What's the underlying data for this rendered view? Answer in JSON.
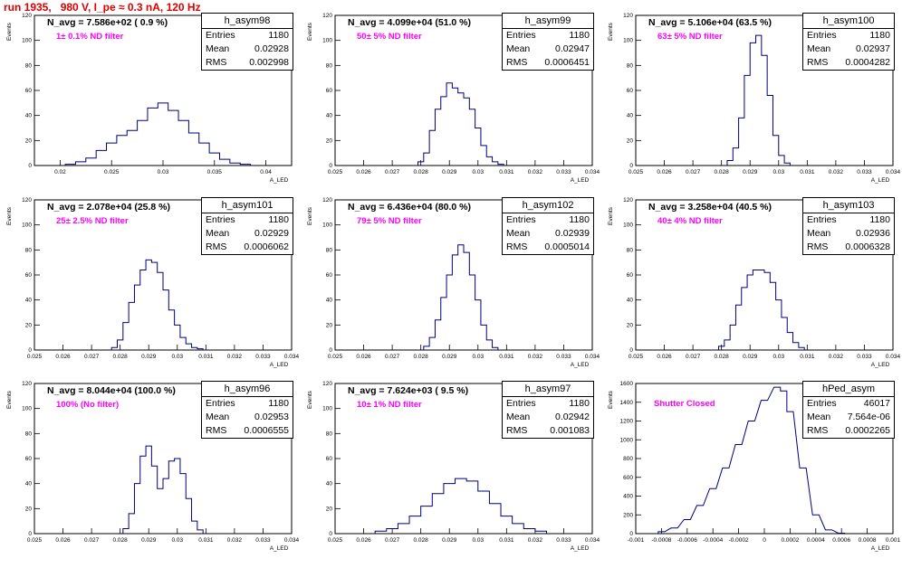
{
  "title": "run 1935,   980 V, I_pe ≈ 0.3 nA, 120 Hz",
  "colors": {
    "title": "#e00000",
    "hist_line": "#000080",
    "nd_label": "#ff00ff",
    "axis": "#000000"
  },
  "panels": [
    {
      "name": "h_asym98",
      "navg": "N_avg = 7.586e+02 ( 0.9 %)",
      "nd": "1± 0.1% ND filter",
      "entries": "1180",
      "mean": "0.02928",
      "rms": "0.002998",
      "entries_label": "Entries",
      "mean_label": "Mean",
      "rms_label": "RMS",
      "ylabel": "Events",
      "xlabel": "A_LED"
    },
    {
      "name": "h_asym99",
      "navg": "N_avg = 4.099e+04 (51.0 %)",
      "nd": "50± 5% ND filter",
      "entries": "1180",
      "mean": "0.02947",
      "rms": "0.0006451",
      "entries_label": "Entries",
      "mean_label": "Mean",
      "rms_label": "RMS",
      "ylabel": "Events",
      "xlabel": "A_LED"
    },
    {
      "name": "h_asym100",
      "navg": "N_avg = 5.106e+04 (63.5 %)",
      "nd": "63± 5% ND filter",
      "entries": "1180",
      "mean": "0.02937",
      "rms": "0.0004282",
      "entries_label": "Entries",
      "mean_label": "Mean",
      "rms_label": "RMS",
      "ylabel": "Events",
      "xlabel": "A_LED"
    },
    {
      "name": "h_asym101",
      "navg": "N_avg = 2.078e+04 (25.8 %)",
      "nd": "25± 2.5% ND filter",
      "entries": "1180",
      "mean": "0.02929",
      "rms": "0.0006062",
      "entries_label": "Entries",
      "mean_label": "Mean",
      "rms_label": "RMS",
      "ylabel": "Events",
      "xlabel": "A_LED"
    },
    {
      "name": "h_asym102",
      "navg": "N_avg = 6.436e+04 (80.0 %)",
      "nd": "79± 5% ND filter",
      "entries": "1180",
      "mean": "0.02939",
      "rms": "0.0005014",
      "entries_label": "Entries",
      "mean_label": "Mean",
      "rms_label": "RMS",
      "ylabel": "Events",
      "xlabel": "A_LED"
    },
    {
      "name": "h_asym103",
      "navg": "N_avg = 3.258e+04 (40.5 %)",
      "nd": "40± 4% ND filter",
      "entries": "1180",
      "mean": "0.02936",
      "rms": "0.0006328",
      "entries_label": "Entries",
      "mean_label": "Mean",
      "rms_label": "RMS",
      "ylabel": "Events",
      "xlabel": "A_LED"
    },
    {
      "name": "h_asym96",
      "navg": "N_avg = 8.044e+04 (100.0 %)",
      "nd": "100% (No filter)",
      "entries": "1180",
      "mean": "0.02953",
      "rms": "0.0006555",
      "entries_label": "Entries",
      "mean_label": "Mean",
      "rms_label": "RMS",
      "ylabel": "Events",
      "xlabel": "A_LED"
    },
    {
      "name": "h_asym97",
      "navg": "N_avg = 7.624e+03 ( 9.5 %)",
      "nd": "10± 1% ND filter",
      "entries": "1180",
      "mean": "0.02942",
      "rms": "0.001083",
      "entries_label": "Entries",
      "mean_label": "Mean",
      "rms_label": "RMS",
      "ylabel": "Events",
      "xlabel": "A_LED"
    },
    {
      "name": "hPed_asym",
      "navg": "",
      "nd": "Shutter Closed",
      "entries": "46017",
      "mean": "7.564e-06",
      "rms": "0.0002265",
      "entries_label": "Entries",
      "mean_label": "Mean",
      "rms_label": "RMS",
      "ylabel": "Events",
      "xlabel": "A_LED"
    }
  ],
  "chart_data": [
    {
      "type": "bar",
      "name": "h_asym98",
      "xlim": [
        0.0175,
        0.0425
      ],
      "ylim": [
        0,
        120
      ],
      "xticks": [
        "0.02",
        "0.025",
        "0.03",
        "0.035",
        "0.04"
      ],
      "xtick_values": [
        0.02,
        0.025,
        0.03,
        0.035,
        0.04
      ],
      "yticks": [
        "0",
        "20",
        "40",
        "60",
        "80",
        "100",
        "120"
      ],
      "x": [
        0.021,
        0.022,
        0.023,
        0.024,
        0.025,
        0.026,
        0.027,
        0.028,
        0.029,
        0.03,
        0.031,
        0.032,
        0.033,
        0.034,
        0.035,
        0.036,
        0.037,
        0.038
      ],
      "values": [
        1,
        3,
        6,
        12,
        18,
        24,
        28,
        36,
        46,
        50,
        44,
        36,
        26,
        18,
        10,
        5,
        2,
        1
      ]
    },
    {
      "type": "bar",
      "name": "h_asym99",
      "xlim": [
        0.025,
        0.034
      ],
      "ylim": [
        0,
        120
      ],
      "xticks": [
        "0.025",
        "0.026",
        "0.027",
        "0.028",
        "0.029",
        "0.03",
        "0.031",
        "0.032",
        "0.033",
        "0.034"
      ],
      "xtick_values": [
        0.025,
        0.026,
        0.027,
        0.028,
        0.029,
        0.03,
        0.031,
        0.032,
        0.033,
        0.034
      ],
      "yticks": [
        "0",
        "20",
        "40",
        "60",
        "80",
        "100",
        "120"
      ],
      "x": [
        0.028,
        0.0282,
        0.0284,
        0.0286,
        0.0288,
        0.029,
        0.0292,
        0.0294,
        0.0296,
        0.0298,
        0.03,
        0.0302,
        0.0304,
        0.0306,
        0.0308
      ],
      "values": [
        3,
        10,
        28,
        45,
        55,
        66,
        62,
        58,
        54,
        45,
        30,
        16,
        7,
        3,
        1
      ]
    },
    {
      "type": "bar",
      "name": "h_asym100",
      "xlim": [
        0.025,
        0.034
      ],
      "ylim": [
        0,
        120
      ],
      "xticks": [
        "0.025",
        "0.026",
        "0.027",
        "0.028",
        "0.029",
        "0.03",
        "0.031",
        "0.032",
        "0.033",
        "0.034"
      ],
      "xtick_values": [
        0.025,
        0.026,
        0.027,
        0.028,
        0.029,
        0.03,
        0.031,
        0.032,
        0.033,
        0.034
      ],
      "yticks": [
        "0",
        "20",
        "40",
        "60",
        "80",
        "100",
        "120"
      ],
      "x": [
        0.0283,
        0.0285,
        0.0287,
        0.0289,
        0.0291,
        0.0293,
        0.0295,
        0.0297,
        0.0299,
        0.0301,
        0.0303
      ],
      "values": [
        4,
        14,
        38,
        72,
        98,
        104,
        88,
        56,
        24,
        8,
        2
      ]
    },
    {
      "type": "bar",
      "name": "h_asym101",
      "xlim": [
        0.025,
        0.034
      ],
      "ylim": [
        0,
        120
      ],
      "xticks": [
        "0.025",
        "0.026",
        "0.027",
        "0.028",
        "0.029",
        "0.03",
        "0.031",
        "0.032",
        "0.033",
        "0.034"
      ],
      "xtick_values": [
        0.025,
        0.026,
        0.027,
        0.028,
        0.029,
        0.03,
        0.031,
        0.032,
        0.033,
        0.034
      ],
      "yticks": [
        "0",
        "20",
        "40",
        "60",
        "80",
        "100",
        "120"
      ],
      "x": [
        0.0278,
        0.028,
        0.0282,
        0.0284,
        0.0286,
        0.0288,
        0.029,
        0.0292,
        0.0294,
        0.0296,
        0.0298,
        0.03,
        0.0302,
        0.0304,
        0.0306,
        0.0308
      ],
      "values": [
        2,
        8,
        22,
        38,
        52,
        64,
        72,
        70,
        62,
        48,
        32,
        20,
        10,
        5,
        2,
        1
      ]
    },
    {
      "type": "bar",
      "name": "h_asym102",
      "xlim": [
        0.025,
        0.034
      ],
      "ylim": [
        0,
        120
      ],
      "xticks": [
        "0.025",
        "0.026",
        "0.027",
        "0.028",
        "0.029",
        "0.03",
        "0.031",
        "0.032",
        "0.033",
        "0.034"
      ],
      "xtick_values": [
        0.025,
        0.026,
        0.027,
        0.028,
        0.029,
        0.03,
        0.031,
        0.032,
        0.033,
        0.034
      ],
      "yticks": [
        "0",
        "20",
        "40",
        "60",
        "80",
        "100",
        "120"
      ],
      "x": [
        0.0282,
        0.0284,
        0.0286,
        0.0288,
        0.029,
        0.0292,
        0.0294,
        0.0296,
        0.0298,
        0.03,
        0.0302,
        0.0304,
        0.0306
      ],
      "values": [
        3,
        10,
        24,
        42,
        60,
        76,
        84,
        78,
        60,
        40,
        20,
        8,
        2
      ]
    },
    {
      "type": "bar",
      "name": "h_asym103",
      "xlim": [
        0.025,
        0.034
      ],
      "ylim": [
        0,
        120
      ],
      "xticks": [
        "0.025",
        "0.026",
        "0.027",
        "0.028",
        "0.029",
        "0.03",
        "0.031",
        "0.032",
        "0.033",
        "0.034"
      ],
      "xtick_values": [
        0.025,
        0.026,
        0.027,
        0.028,
        0.029,
        0.03,
        0.031,
        0.032,
        0.033,
        0.034
      ],
      "yticks": [
        "0",
        "20",
        "40",
        "60",
        "80",
        "100",
        "120"
      ],
      "x": [
        0.028,
        0.0282,
        0.0284,
        0.0286,
        0.0288,
        0.029,
        0.0292,
        0.0294,
        0.0296,
        0.0298,
        0.03,
        0.0302,
        0.0304,
        0.0306,
        0.0308
      ],
      "values": [
        3,
        8,
        20,
        36,
        50,
        60,
        64,
        64,
        62,
        54,
        40,
        26,
        14,
        6,
        2
      ]
    },
    {
      "type": "bar",
      "name": "h_asym96",
      "xlim": [
        0.025,
        0.034
      ],
      "ylim": [
        0,
        120
      ],
      "xticks": [
        "0.025",
        "0.026",
        "0.027",
        "0.028",
        "0.029",
        "0.03",
        "0.031",
        "0.032",
        "0.033",
        "0.034"
      ],
      "xtick_values": [
        0.025,
        0.026,
        0.027,
        0.028,
        0.029,
        0.03,
        0.031,
        0.032,
        0.033,
        0.034
      ],
      "yticks": [
        "0",
        "20",
        "40",
        "60",
        "80",
        "100",
        "120"
      ],
      "x": [
        0.0282,
        0.0284,
        0.0286,
        0.0288,
        0.029,
        0.0292,
        0.0294,
        0.0296,
        0.0298,
        0.03,
        0.0302,
        0.0304,
        0.0306,
        0.0308
      ],
      "values": [
        4,
        16,
        40,
        62,
        70,
        54,
        36,
        44,
        58,
        60,
        48,
        28,
        10,
        3
      ]
    },
    {
      "type": "bar",
      "name": "h_asym97",
      "xlim": [
        0.025,
        0.034
      ],
      "ylim": [
        0,
        120
      ],
      "xticks": [
        "0.025",
        "0.026",
        "0.027",
        "0.028",
        "0.029",
        "0.03",
        "0.031",
        "0.032",
        "0.033",
        "0.034"
      ],
      "xtick_values": [
        0.025,
        0.026,
        0.027,
        0.028,
        0.029,
        0.03,
        0.031,
        0.032,
        0.033,
        0.034
      ],
      "yticks": [
        "0",
        "20",
        "40",
        "60",
        "80",
        "100",
        "120"
      ],
      "x": [
        0.0266,
        0.027,
        0.0274,
        0.0278,
        0.0282,
        0.0286,
        0.029,
        0.0294,
        0.0298,
        0.0302,
        0.0306,
        0.031,
        0.0314,
        0.0318,
        0.0322
      ],
      "values": [
        2,
        4,
        8,
        14,
        22,
        32,
        40,
        44,
        42,
        34,
        24,
        14,
        8,
        4,
        2
      ]
    },
    {
      "type": "bar",
      "name": "hPed_asym",
      "xlim": [
        -0.001,
        0.001
      ],
      "ylim": [
        0,
        1600
      ],
      "xticks": [
        "-0.001",
        "-0.0008",
        "-0.0006",
        "-0.0004",
        "-0.0002",
        "0",
        "0.0002",
        "0.0004",
        "0.0006",
        "0.0008",
        "0.001"
      ],
      "xtick_values": [
        -0.001,
        -0.0008,
        -0.0006,
        -0.0004,
        -0.0002,
        0,
        0.0002,
        0.0004,
        0.0006,
        0.0008,
        0.001
      ],
      "yticks": [
        "0",
        "200",
        "400",
        "600",
        "800",
        "1000",
        "1200",
        "1400",
        "1600"
      ],
      "x": [
        -0.0008,
        -0.0007,
        -0.0006,
        -0.0005,
        -0.0004,
        -0.0003,
        -0.0002,
        -0.0001,
        0.0,
        0.0001,
        0.00015,
        0.0002,
        0.0003,
        0.0004,
        0.0005,
        0.0006
      ],
      "values": [
        20,
        60,
        150,
        300,
        480,
        700,
        950,
        1200,
        1420,
        1560,
        1520,
        1300,
        700,
        200,
        40,
        5
      ]
    }
  ]
}
